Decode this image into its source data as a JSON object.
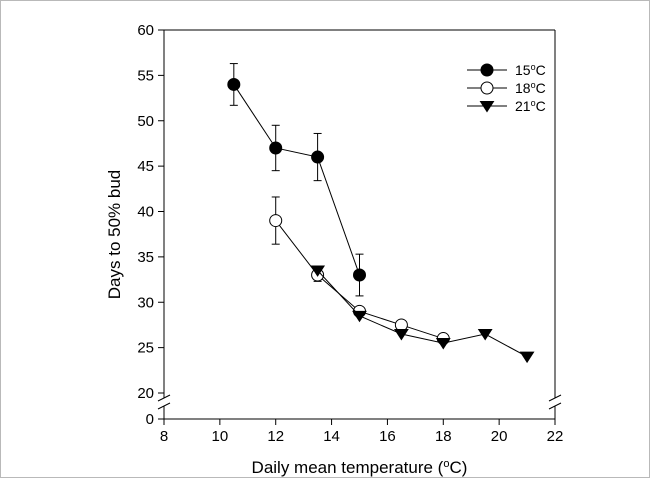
{
  "chart_data": {
    "type": "scatter",
    "xlabel": "Daily mean temperature (",
    "xlabel_sup": "o",
    "xlabel_end": "C)",
    "ylabel": "Days to 50% bud",
    "xlim": [
      8,
      22
    ],
    "x_ticks": [
      "8",
      "10",
      "12",
      "14",
      "16",
      "18",
      "20",
      "22"
    ],
    "y_break": true,
    "y_ticks_lower": [
      "0"
    ],
    "y_ticks_upper": [
      "20",
      "25",
      "30",
      "35",
      "40",
      "45",
      "50",
      "55",
      "60"
    ],
    "ylim_upper": [
      20,
      60
    ],
    "legend_position": "top-right",
    "series": [
      {
        "name": "15",
        "name_sup": "o",
        "name_end": "C",
        "marker": "filled-circle",
        "x": [
          10.5,
          12,
          13.5,
          15
        ],
        "y": [
          54,
          47,
          46,
          33
        ],
        "err": [
          2.3,
          2.5,
          2.6,
          2.3
        ]
      },
      {
        "name": "18",
        "name_sup": "o",
        "name_end": "C",
        "marker": "open-circle",
        "x": [
          12,
          13.5,
          15,
          16.5,
          18
        ],
        "y": [
          39,
          33,
          29,
          27.5,
          26
        ],
        "err": [
          2.6,
          0.7,
          0.5,
          0.3,
          0.3
        ]
      },
      {
        "name": "21",
        "name_sup": "o",
        "name_end": "C",
        "marker": "filled-triangle-down",
        "x": [
          13.5,
          15,
          16.5,
          18,
          19.5,
          21
        ],
        "y": [
          33.5,
          28.5,
          26.5,
          25.5,
          26.5,
          24
        ],
        "err": [
          0.4,
          0.3,
          0.2,
          0.2,
          0.2,
          0.2
        ]
      }
    ]
  }
}
